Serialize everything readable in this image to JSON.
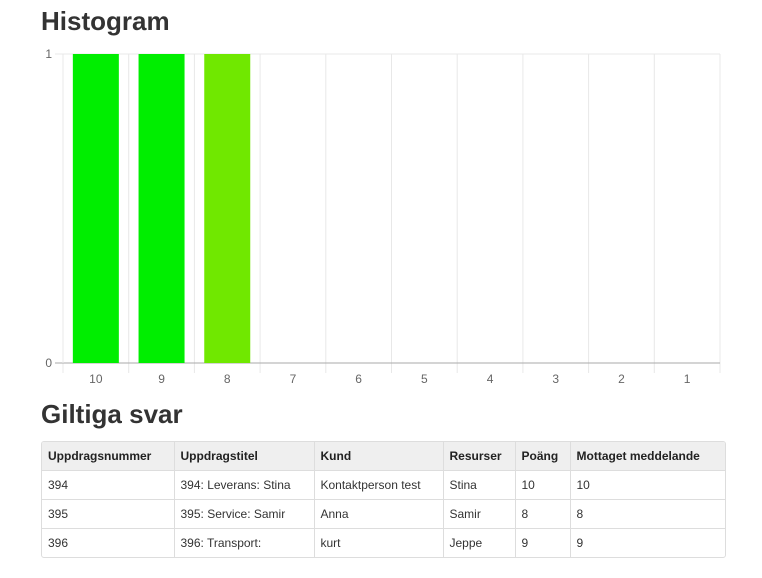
{
  "headings": {
    "histogram": "Histogram",
    "answers": "Giltiga svar"
  },
  "colors": {
    "bar_bright": "#00ee00",
    "bar_light": "#70e800",
    "grid": "#e8e8e8",
    "axis": "#aaaaaa"
  },
  "chart_data": {
    "type": "bar",
    "categories": [
      "10",
      "9",
      "8",
      "7",
      "6",
      "5",
      "4",
      "3",
      "2",
      "1"
    ],
    "values": [
      1,
      1,
      1,
      0,
      0,
      0,
      0,
      0,
      0,
      0
    ],
    "bar_colors": [
      "#00ee00",
      "#00ee00",
      "#70e800",
      "#00ee00",
      "#00ee00",
      "#00ee00",
      "#00ee00",
      "#00ee00",
      "#00ee00",
      "#00ee00"
    ],
    "ylim": [
      0,
      1
    ],
    "yticks": [
      "0",
      "1"
    ],
    "grid": true,
    "title": "",
    "xlabel": "",
    "ylabel": ""
  },
  "table": {
    "headers": [
      "Uppdragsnummer",
      "Uppdragstitel",
      "Kund",
      "Resurser",
      "Poäng",
      "Mottaget meddelande"
    ],
    "rows": [
      [
        "394",
        "394: Leverans: Stina",
        "Kontaktperson test",
        "Stina",
        "10",
        "10"
      ],
      [
        "395",
        "395: Service: Samir",
        "Anna",
        "Samir",
        "8",
        "8"
      ],
      [
        "396",
        "396: Transport:",
        "kurt",
        "Jeppe",
        "9",
        "9"
      ]
    ]
  }
}
